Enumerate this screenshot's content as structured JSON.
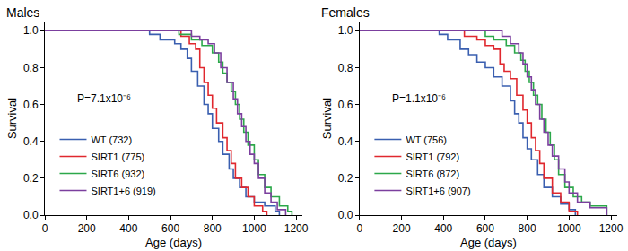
{
  "chart_data": [
    {
      "type": "line",
      "title": "Males",
      "x_label": "Age (days)",
      "y_label": "Survival",
      "annotation": "P=7.1x10⁻⁶",
      "xlim": [
        0,
        1230
      ],
      "xticks": [
        0,
        200,
        400,
        600,
        800,
        1000,
        1200
      ],
      "ylim": [
        0,
        1.05
      ],
      "yticks": [
        {
          "value": 0,
          "label": "0.0"
        },
        {
          "value": 0.2,
          "label": "0.2"
        },
        {
          "value": 0.4,
          "label": "0.4"
        },
        {
          "value": 0.6,
          "label": "0.6"
        },
        {
          "value": 0.8,
          "label": "0.8"
        },
        {
          "value": 1,
          "label": "1.0"
        }
      ],
      "grid": false,
      "legend": "lower left",
      "line_style": "step",
      "series": [
        {
          "name": "WT (732)",
          "color": "#3a5fb0",
          "x": [
            0,
            480,
            500,
            550,
            620,
            650,
            680,
            700,
            730,
            760,
            780,
            800,
            830,
            850,
            880,
            900,
            930,
            960,
            1000,
            1050,
            1100,
            1120
          ],
          "values": [
            1.0,
            1.0,
            0.98,
            0.95,
            0.93,
            0.9,
            0.85,
            0.78,
            0.7,
            0.6,
            0.55,
            0.47,
            0.4,
            0.33,
            0.25,
            0.2,
            0.15,
            0.1,
            0.07,
            0.05,
            0.02,
            0.0
          ]
        },
        {
          "name": "SIRT1 (775)",
          "color": "#e0282e",
          "x": [
            0,
            620,
            650,
            690,
            720,
            740,
            760,
            780,
            800,
            820,
            850,
            870,
            890,
            910,
            940,
            970,
            1000,
            1040,
            1060
          ],
          "values": [
            1.0,
            1.0,
            0.97,
            0.93,
            0.9,
            0.8,
            0.72,
            0.65,
            0.58,
            0.5,
            0.42,
            0.35,
            0.28,
            0.2,
            0.15,
            0.1,
            0.05,
            0.02,
            0.0
          ]
        },
        {
          "name": "SIRT6 (932)",
          "color": "#2ca84a",
          "x": [
            0,
            600,
            640,
            700,
            750,
            800,
            830,
            850,
            870,
            890,
            910,
            930,
            950,
            970,
            1000,
            1020,
            1050,
            1080,
            1120,
            1160,
            1180
          ],
          "values": [
            1.0,
            1.0,
            0.98,
            0.95,
            0.92,
            0.88,
            0.83,
            0.77,
            0.72,
            0.67,
            0.6,
            0.52,
            0.45,
            0.38,
            0.3,
            0.22,
            0.15,
            0.1,
            0.05,
            0.02,
            0.0
          ]
        },
        {
          "name": "SIRT1+6 (919)",
          "color": "#7b3f9e",
          "x": [
            0,
            650,
            700,
            740,
            780,
            810,
            840,
            870,
            900,
            920,
            940,
            960,
            980,
            1000,
            1020,
            1050,
            1080,
            1110,
            1150
          ],
          "values": [
            1.0,
            1.0,
            0.97,
            0.95,
            0.93,
            0.88,
            0.8,
            0.72,
            0.63,
            0.55,
            0.48,
            0.4,
            0.33,
            0.28,
            0.2,
            0.12,
            0.07,
            0.03,
            0.0
          ]
        }
      ]
    },
    {
      "type": "line",
      "title": "Females",
      "x_label": "Age (days)",
      "y_label": "Survival",
      "annotation": "P=1.1x10⁻⁶",
      "xlim": [
        0,
        1230
      ],
      "xticks": [
        0,
        200,
        400,
        600,
        800,
        1000,
        1200
      ],
      "ylim": [
        0,
        1.05
      ],
      "yticks": [
        {
          "value": 0,
          "label": "0.0"
        },
        {
          "value": 0.2,
          "label": "0.2"
        },
        {
          "value": 0.4,
          "label": "0.4"
        },
        {
          "value": 0.6,
          "label": "0.6"
        },
        {
          "value": 0.8,
          "label": "0.8"
        },
        {
          "value": 1,
          "label": "1.0"
        }
      ],
      "grid": false,
      "legend": "lower left",
      "line_style": "step",
      "series": [
        {
          "name": "WT (756)",
          "color": "#3a5fb0",
          "x": [
            0,
            380,
            420,
            480,
            520,
            560,
            600,
            640,
            680,
            720,
            740,
            760,
            780,
            800,
            820,
            850,
            880,
            920,
            960,
            1000,
            1030
          ],
          "values": [
            1.0,
            0.98,
            0.95,
            0.9,
            0.87,
            0.83,
            0.8,
            0.75,
            0.7,
            0.62,
            0.55,
            0.5,
            0.42,
            0.36,
            0.3,
            0.22,
            0.15,
            0.1,
            0.06,
            0.03,
            0.0
          ]
        },
        {
          "name": "SIRT1 (792)",
          "color": "#e0282e",
          "x": [
            0,
            480,
            500,
            560,
            600,
            640,
            670,
            690,
            720,
            750,
            780,
            800,
            820,
            840,
            860,
            880,
            920,
            960,
            1000,
            1040
          ],
          "values": [
            1.0,
            1.0,
            0.97,
            0.95,
            0.92,
            0.9,
            0.82,
            0.78,
            0.74,
            0.65,
            0.57,
            0.5,
            0.42,
            0.35,
            0.28,
            0.2,
            0.12,
            0.07,
            0.02,
            0.0
          ]
        },
        {
          "name": "SIRT6 (872)",
          "color": "#2ca84a",
          "x": [
            0,
            560,
            600,
            640,
            700,
            740,
            770,
            790,
            810,
            830,
            850,
            870,
            890,
            910,
            930,
            950,
            980,
            1020,
            1060,
            1100,
            1180
          ],
          "values": [
            1.0,
            1.0,
            0.97,
            0.95,
            0.92,
            0.88,
            0.84,
            0.78,
            0.72,
            0.65,
            0.6,
            0.52,
            0.45,
            0.38,
            0.3,
            0.22,
            0.15,
            0.1,
            0.07,
            0.05,
            0.0
          ]
        },
        {
          "name": "SIRT1+6 (907)",
          "color": "#7b3f9e",
          "x": [
            0,
            640,
            680,
            720,
            760,
            780,
            800,
            820,
            840,
            860,
            880,
            900,
            920,
            950,
            980,
            1000,
            1040,
            1100,
            1180
          ],
          "values": [
            1.0,
            1.0,
            0.97,
            0.93,
            0.88,
            0.82,
            0.75,
            0.68,
            0.6,
            0.52,
            0.45,
            0.38,
            0.32,
            0.25,
            0.18,
            0.12,
            0.07,
            0.04,
            0.0
          ]
        }
      ]
    }
  ]
}
